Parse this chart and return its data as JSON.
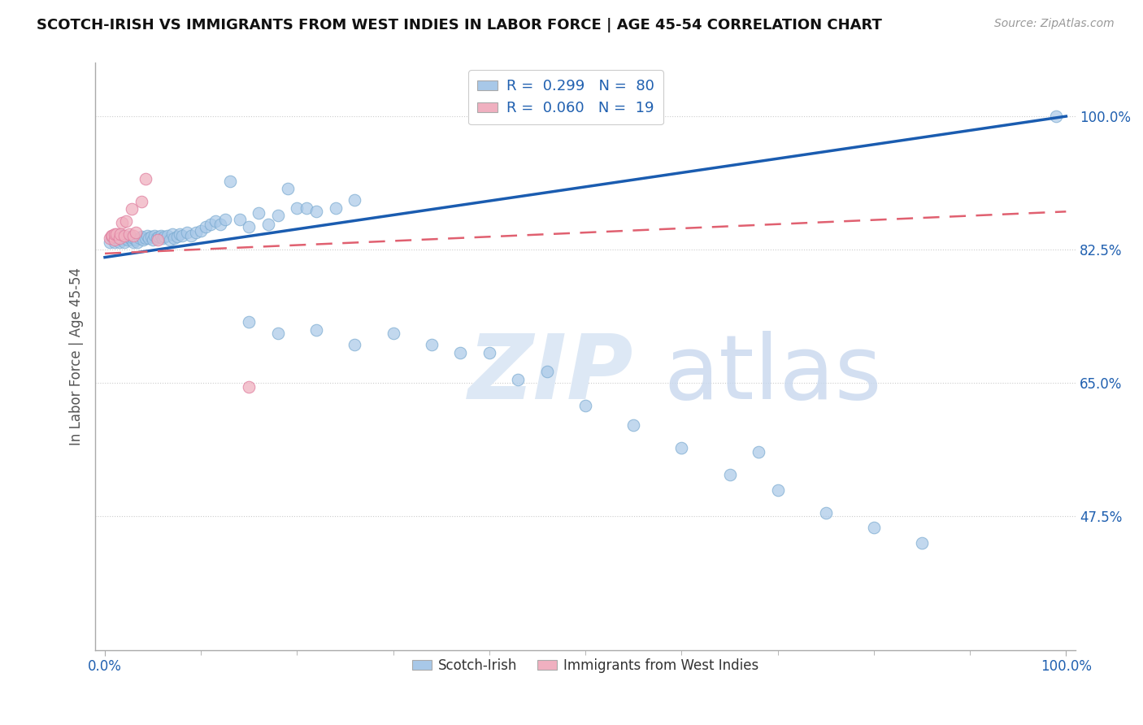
{
  "title": "SCOTCH-IRISH VS IMMIGRANTS FROM WEST INDIES IN LABOR FORCE | AGE 45-54 CORRELATION CHART",
  "source": "Source: ZipAtlas.com",
  "ylabel": "In Labor Force | Age 45-54",
  "ytick_labels": [
    "47.5%",
    "65.0%",
    "82.5%",
    "100.0%"
  ],
  "ytick_values": [
    0.475,
    0.65,
    0.825,
    1.0
  ],
  "xtick_labels": [
    "0.0%",
    "100.0%"
  ],
  "xtick_values": [
    0.0,
    1.0
  ],
  "xlim": [
    -0.01,
    1.01
  ],
  "ylim": [
    0.3,
    1.07
  ],
  "legend_label_blue": "Scotch-Irish",
  "legend_label_pink": "Immigrants from West Indies",
  "blue_color": "#a8c8e8",
  "pink_color": "#f0b0c0",
  "blue_edge_color": "#7aaad0",
  "pink_edge_color": "#e080a0",
  "blue_line_color": "#1a5cb0",
  "pink_line_color": "#e06070",
  "axis_color": "#2060b0",
  "title_color": "#111111",
  "source_color": "#999999",
  "background_color": "#ffffff",
  "blue_R": "0.299",
  "blue_N": "80",
  "pink_R": "0.060",
  "pink_N": "19",
  "blue_line": [
    0.0,
    1.0,
    0.815,
    1.0
  ],
  "pink_line": [
    0.0,
    1.0,
    0.82,
    0.875
  ],
  "blue_scatter_x": [
    0.005,
    0.008,
    0.01,
    0.012,
    0.013,
    0.015,
    0.016,
    0.018,
    0.02,
    0.022,
    0.024,
    0.025,
    0.026,
    0.028,
    0.03,
    0.03,
    0.032,
    0.034,
    0.036,
    0.038,
    0.04,
    0.042,
    0.044,
    0.046,
    0.048,
    0.05,
    0.052,
    0.054,
    0.056,
    0.058,
    0.06,
    0.062,
    0.065,
    0.068,
    0.07,
    0.072,
    0.075,
    0.078,
    0.08,
    0.085,
    0.09,
    0.095,
    0.1,
    0.105,
    0.11,
    0.115,
    0.12,
    0.125,
    0.13,
    0.14,
    0.15,
    0.16,
    0.17,
    0.18,
    0.19,
    0.2,
    0.21,
    0.22,
    0.24,
    0.26,
    0.15,
    0.18,
    0.22,
    0.26,
    0.3,
    0.34,
    0.37,
    0.4,
    0.43,
    0.46,
    0.5,
    0.55,
    0.6,
    0.65,
    0.7,
    0.75,
    0.8,
    0.85,
    0.68,
    0.99
  ],
  "blue_scatter_y": [
    0.835,
    0.84,
    0.835,
    0.84,
    0.84,
    0.835,
    0.843,
    0.838,
    0.835,
    0.84,
    0.838,
    0.842,
    0.84,
    0.838,
    0.835,
    0.84,
    0.838,
    0.835,
    0.84,
    0.842,
    0.838,
    0.84,
    0.843,
    0.84,
    0.842,
    0.838,
    0.843,
    0.84,
    0.842,
    0.843,
    0.84,
    0.842,
    0.843,
    0.838,
    0.845,
    0.84,
    0.842,
    0.845,
    0.843,
    0.848,
    0.843,
    0.848,
    0.85,
    0.855,
    0.858,
    0.862,
    0.858,
    0.865,
    0.915,
    0.865,
    0.855,
    0.873,
    0.858,
    0.87,
    0.905,
    0.88,
    0.88,
    0.875,
    0.88,
    0.89,
    0.73,
    0.715,
    0.72,
    0.7,
    0.715,
    0.7,
    0.69,
    0.69,
    0.655,
    0.665,
    0.62,
    0.595,
    0.565,
    0.53,
    0.51,
    0.48,
    0.46,
    0.44,
    0.56,
    1.0
  ],
  "pink_scatter_x": [
    0.005,
    0.007,
    0.008,
    0.01,
    0.01,
    0.012,
    0.015,
    0.016,
    0.018,
    0.02,
    0.022,
    0.025,
    0.028,
    0.03,
    0.032,
    0.038,
    0.042,
    0.055,
    0.15
  ],
  "pink_scatter_y": [
    0.84,
    0.843,
    0.843,
    0.838,
    0.845,
    0.845,
    0.84,
    0.845,
    0.86,
    0.843,
    0.863,
    0.845,
    0.878,
    0.843,
    0.848,
    0.888,
    0.918,
    0.838,
    0.645
  ]
}
